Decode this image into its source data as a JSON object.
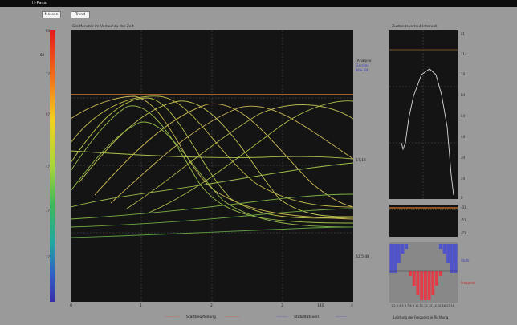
{
  "app": {
    "title": "H-Pana"
  },
  "toolbar": {
    "button1": "Messen",
    "button2": "Trend"
  },
  "colorbar": {
    "top_value": "83",
    "ticks": [
      "83",
      "77",
      "67",
      "57",
      "47",
      "37",
      "27",
      "17",
      "7"
    ]
  },
  "main_plot": {
    "title": "Gleitfenster im Verlauf zu der Zeit",
    "right_labels": {
      "label1": "[Analyse]",
      "label2": "Ganzes",
      "label3": "Alle Bit",
      "mid": "17,12",
      "bottom": "42,5 dB"
    },
    "x_ticks": [
      "0",
      "1",
      "2",
      "3",
      "4"
    ],
    "x_extra": "140",
    "legend": [
      {
        "text": "————",
        "color": "#e0503a"
      },
      {
        "text": "Startbeurteilung",
        "color": "#111111"
      },
      {
        "text": "————",
        "color": "#e0503a"
      },
      {
        "text": "———",
        "color": "#4f55c8"
      },
      {
        "text": "Stabilitätsverl.",
        "color": "#111111"
      },
      {
        "text": "———",
        "color": "#4f55c8"
      }
    ]
  },
  "right_panel": {
    "title": "Zustandsverlauf Intervall",
    "top_label": "114",
    "side_ticks": [
      "81",
      "74",
      "64",
      "54",
      "44",
      "34",
      "24",
      "14",
      "0"
    ],
    "mini_ticks": [
      "-31",
      "-51",
      "-71"
    ],
    "bars_labels": {
      "top": "Stufe",
      "mid": "Frequenz"
    },
    "bottom_caption": "Leistung der Frequenz je Richtung",
    "bottom_ticks": "1 2 3 4 5 6 7 8 9 10 11 12 13 14 15 16 17 18"
  },
  "chart_data": {
    "type": "bar",
    "title": "",
    "series": [
      {
        "name": "Stufe",
        "values": [
          -6,
          -6,
          -4,
          -2,
          -1,
          0,
          0,
          0,
          0,
          0,
          0,
          0,
          0,
          -1,
          -2,
          -4,
          -6,
          -6
        ]
      },
      {
        "name": "Frequenz",
        "values": [
          0,
          0,
          0,
          0,
          0,
          -1,
          -3,
          -5,
          -6,
          -6,
          -6,
          -5,
          -3,
          -1,
          0,
          0,
          0,
          0
        ]
      }
    ],
    "colors": [
      "#4f55c8",
      "#e33b47"
    ]
  }
}
